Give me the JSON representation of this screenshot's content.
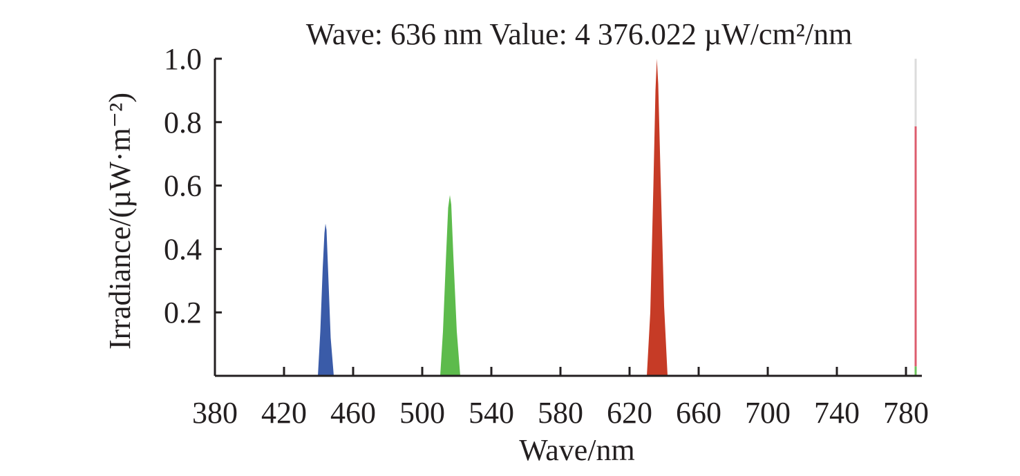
{
  "chart_data": {
    "type": "area",
    "title": "Wave: 636 nm Value: 4 376.022 µW/cm²/nm",
    "xlabel": "Wave/nm",
    "ylabel": "Irradiance/(µW·m⁻²)",
    "xlim": [
      380,
      789
    ],
    "ylim": [
      0,
      1.0
    ],
    "x_ticks": [
      380,
      420,
      460,
      500,
      540,
      580,
      620,
      660,
      700,
      740,
      780
    ],
    "y_ticks": [
      0.2,
      0.4,
      0.6,
      0.8,
      1.0
    ],
    "y_tick_labels": [
      "0.2",
      "0.4",
      "0.6",
      "0.8",
      "1.0"
    ],
    "grid": false,
    "series": [
      {
        "name": "blue peak",
        "color": "#3a5ba8",
        "peak_x": 444,
        "peak_y": 0.48,
        "points": [
          [
            439.6,
            0
          ],
          [
            441,
            0.14
          ],
          [
            442.4,
            0.34
          ],
          [
            443.4,
            0.45
          ],
          [
            444,
            0.48
          ],
          [
            444.6,
            0.46
          ],
          [
            445.6,
            0.32
          ],
          [
            447,
            0.12
          ],
          [
            448.8,
            0
          ]
        ]
      },
      {
        "name": "green peak",
        "color": "#5dbb4c",
        "peak_x": 516,
        "peak_y": 0.57,
        "points": [
          [
            510.4,
            0
          ],
          [
            512,
            0.14
          ],
          [
            513.8,
            0.38
          ],
          [
            515,
            0.53
          ],
          [
            516,
            0.57
          ],
          [
            516.8,
            0.54
          ],
          [
            518,
            0.38
          ],
          [
            520,
            0.14
          ],
          [
            522,
            0
          ]
        ]
      },
      {
        "name": "red peak",
        "color": "#c63b26",
        "peak_x": 636,
        "peak_y": 1.0,
        "points": [
          [
            630,
            0
          ],
          [
            632,
            0.2
          ],
          [
            633.8,
            0.6
          ],
          [
            635,
            0.9
          ],
          [
            635.8,
            1.0
          ],
          [
            636.6,
            0.92
          ],
          [
            638,
            0.62
          ],
          [
            640,
            0.22
          ],
          [
            642,
            0
          ]
        ]
      }
    ],
    "cursor_line": {
      "x": 785.6,
      "color_top": "#dcdcdc",
      "segments": [
        {
          "from": 0,
          "to": 0.03,
          "color": "#6cc35a"
        },
        {
          "from": 0.03,
          "to": 0.787,
          "color": "#dd5c6e"
        },
        {
          "from": 0.787,
          "to": 1.0,
          "color": "#dcdcdc"
        }
      ]
    }
  }
}
